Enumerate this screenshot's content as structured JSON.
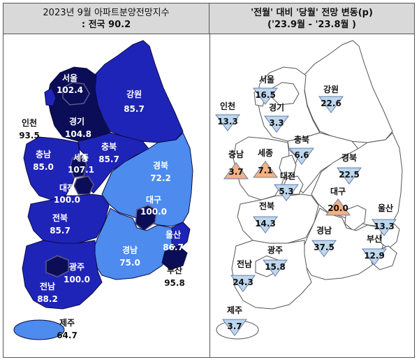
{
  "left_panel": {
    "title_line1": "2023년  9월  아파트분양전망지수",
    "title_line2": ":  전국  90.2",
    "regions": [
      {
        "name": "서울",
        "value": "102.4"
      },
      {
        "name": "강원",
        "value": "85.7"
      },
      {
        "name": "인천",
        "value": "93.5"
      },
      {
        "name": "경기",
        "value": "104.8"
      },
      {
        "name": "충남",
        "value": "85.0"
      },
      {
        "name": "세종",
        "value": "107.1"
      },
      {
        "name": "충북",
        "value": "85.7"
      },
      {
        "name": "경북",
        "value": "72.2"
      },
      {
        "name": "대전",
        "value": "100.0"
      },
      {
        "name": "대구",
        "value": "100.0"
      },
      {
        "name": "전북",
        "value": "85.7"
      },
      {
        "name": "울산",
        "value": "86.7"
      },
      {
        "name": "경남",
        "value": "75.0"
      },
      {
        "name": "광주",
        "value": "100.0"
      },
      {
        "name": "부산",
        "value": "95.8"
      },
      {
        "name": "전남",
        "value": "88.2"
      },
      {
        "name": "제주",
        "value": "64.7"
      }
    ],
    "colors": {
      "dark": "#0c0d57",
      "mid": "#1f24b8",
      "light": "#4d8bee"
    }
  },
  "right_panel": {
    "title_line1": "'전월' 대비 '당월' 전망 변동(p)",
    "title_line2": "('23.9월  -  '23.8월  )",
    "regions": [
      {
        "name": "서울",
        "change": "16.5",
        "direction": "down"
      },
      {
        "name": "강원",
        "change": "22.6",
        "direction": "down"
      },
      {
        "name": "인천",
        "change": "13.3",
        "direction": "down"
      },
      {
        "name": "경기",
        "change": "3.3",
        "direction": "down"
      },
      {
        "name": "충북",
        "change": "6.6",
        "direction": "down"
      },
      {
        "name": "충남",
        "change": "3.7",
        "direction": "up"
      },
      {
        "name": "세종",
        "change": "7.1",
        "direction": "up"
      },
      {
        "name": "경북",
        "change": "22.5",
        "direction": "down"
      },
      {
        "name": "대전",
        "change": "5.3",
        "direction": "down"
      },
      {
        "name": "대구",
        "change": "20.0",
        "direction": "up"
      },
      {
        "name": "전북",
        "change": "14.3",
        "direction": "down"
      },
      {
        "name": "울산",
        "change": "13.3",
        "direction": "down"
      },
      {
        "name": "경남",
        "change": "37.5",
        "direction": "down"
      },
      {
        "name": "부산",
        "change": "12.9",
        "direction": "down"
      },
      {
        "name": "광주",
        "change": "15.8",
        "direction": "down"
      },
      {
        "name": "전남",
        "change": "24.3",
        "direction": "down"
      },
      {
        "name": "제주",
        "change": "3.7",
        "direction": "down"
      }
    ],
    "colors": {
      "down_fill": "#bdd7ee",
      "up_fill": "#f4b183"
    }
  }
}
